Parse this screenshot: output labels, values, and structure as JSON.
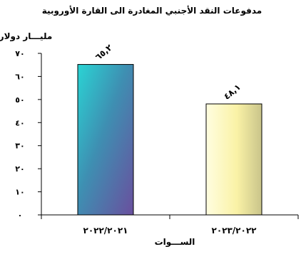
{
  "chart_data": {
    "type": "bar",
    "title": "مدفوعات النقد الأجنبي المغادرة الى القارة الأوروبية",
    "ylabel": "مليـــار دولار",
    "xlabel": "الســـوات",
    "categories": [
      "٢٠٢٢/٢٠٢١",
      "٢٠٢٣/٢٠٢٢"
    ],
    "values": [
      65.2,
      48.1
    ],
    "data_labels": [
      "٦٥,٢",
      "٤٨,١"
    ],
    "ylim": [
      0,
      70
    ],
    "y_ticks": [
      0,
      10,
      20,
      30,
      40,
      50,
      60,
      70
    ],
    "y_tick_labels": [
      "٠",
      "١٠",
      "٢٠",
      "٣٠",
      "٤٠",
      "٥٠",
      "٦٠",
      "٧٠"
    ],
    "grid": false,
    "legend": "none",
    "colors": {
      "bar1_top": "#2ad4d4",
      "bar1_mid": "#3e8fb2",
      "bar1_bottom": "#6a4f9e",
      "bar2_light": "#fffde0",
      "bar2_mid": "#faf2a6",
      "bar2_dark": "#c9c48a",
      "axis": "#000000"
    }
  }
}
